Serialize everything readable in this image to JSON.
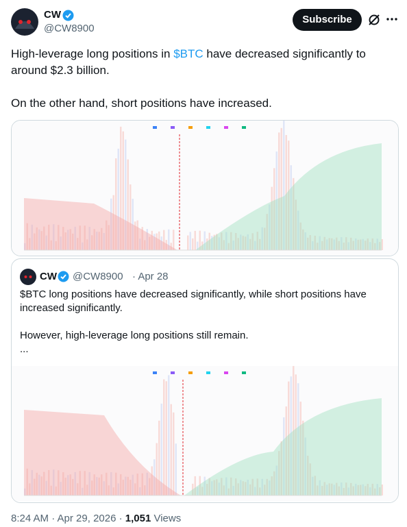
{
  "post": {
    "author": {
      "name": "CW",
      "handle": "@CW8900"
    },
    "subscribe": "Subscribe",
    "paragraphs": [
      [
        "High-leverage long positions in ",
        "$BTC",
        " have decreased significantly to around $2.3 billion."
      ],
      [
        "On the other hand, short positions have increased."
      ]
    ],
    "quote": {
      "author": {
        "name": "CW",
        "handle": "@CW8900",
        "date": "· Apr 28"
      },
      "paragraphs": [
        "$BTC long positions have decreased significantly, while short positions have increased significantly.",
        "However, high-leverage long positions still remain.",
        "..."
      ]
    },
    "footer": {
      "time": "8:24 AM · Apr 29, 2026 · ",
      "views": "1,051",
      "views_label": " Views"
    }
  }
}
